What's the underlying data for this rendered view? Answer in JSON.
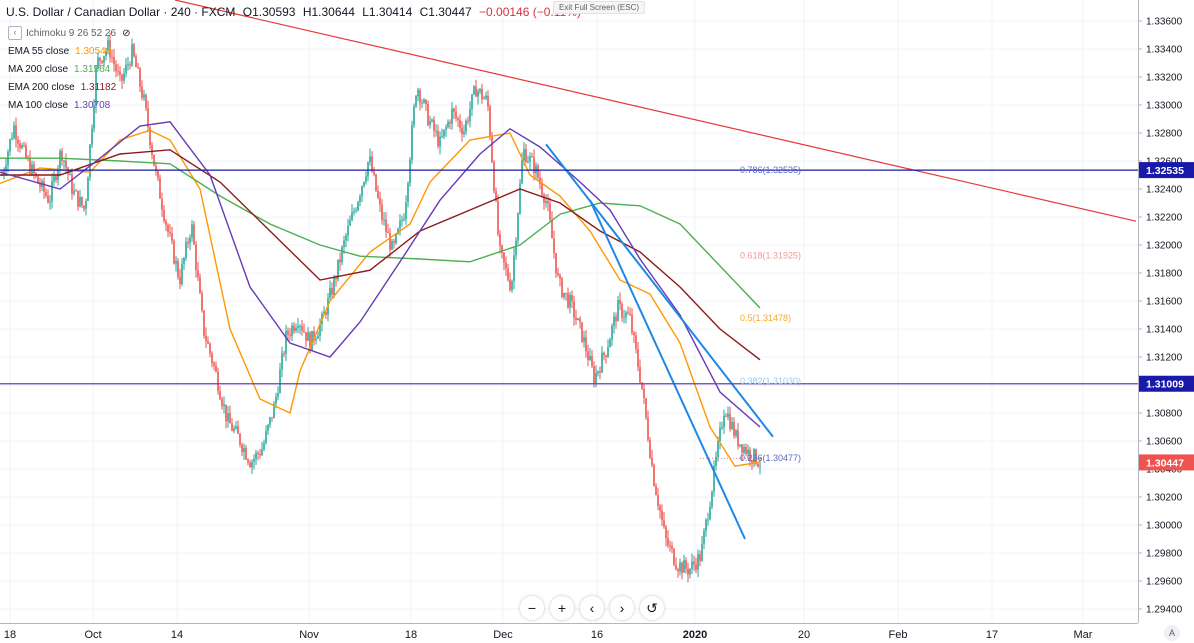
{
  "header": {
    "symbol": "U.S. Dollar / Canadian Dollar · 240 · FXCM",
    "open": "O1.30593",
    "high": "H1.30644",
    "low": "L1.30414",
    "close": "C1.30447",
    "change": "−0.00146 (−0.11%)"
  },
  "indicators": [
    {
      "label": "Ichimoku 9 26 52 26",
      "value": "",
      "color": "#787b86"
    },
    {
      "label": "EMA 55 close",
      "value": "1.30543",
      "color": "#ff9800"
    },
    {
      "label": "MA 200 close",
      "value": "1.31564",
      "color": "#4caf50"
    },
    {
      "label": "EMA 200 close",
      "value": "1.31182",
      "color": "#8b1a1a"
    },
    {
      "label": "MA 100 close",
      "value": "1.30708",
      "color": "#673ab7"
    }
  ],
  "ui": {
    "exit_fullscreen": "Exit Full Screen (ESC)",
    "zoom_out": "−",
    "zoom_in": "+",
    "scroll_left": "‹",
    "scroll_right": "›",
    "reset": "↺",
    "auto_scale": "A"
  },
  "colors": {
    "up": "#26a69a",
    "down": "#ef5350",
    "trend_red": "#e53935",
    "trend_blue": "#1e88e5",
    "hline": "#1a1aa8",
    "hline2": "#6a3fc1"
  },
  "chart_data": {
    "type": "candlestick",
    "xlabels": [
      "18",
      "Oct",
      "14",
      "Nov",
      "18",
      "Dec",
      "16",
      "2020",
      "20",
      "Feb",
      "17",
      "Mar"
    ],
    "ylim": [
      1.293,
      1.3375
    ],
    "y_ticks": [
      "1.33600",
      "1.33400",
      "1.33200",
      "1.33000",
      "1.32800",
      "1.32600",
      "1.32400",
      "1.32200",
      "1.32000",
      "1.31800",
      "1.31600",
      "1.31400",
      "1.31200",
      "1.31000",
      "1.30800",
      "1.30600",
      "1.30400",
      "1.30200",
      "1.30000",
      "1.29800",
      "1.29600",
      "1.29400"
    ],
    "price_labels": [
      {
        "value": 1.32535,
        "text": "1.32535",
        "color": "#1a1aa8"
      },
      {
        "value": 1.31009,
        "text": "1.31009",
        "color": "#1a1aa8"
      },
      {
        "value": 1.30447,
        "text": "1.30447",
        "color": "#ef5350"
      }
    ],
    "fib_labels": [
      {
        "value": 1.32535,
        "text": "0.786(1.32535)",
        "color": "#5c6bc0"
      },
      {
        "value": 1.31925,
        "text": "0.618(1.31925)",
        "color": "#ef9a9a"
      },
      {
        "value": 1.31478,
        "text": "0.5(1.31478)",
        "color": "#f9a825"
      },
      {
        "value": 1.3103,
        "text": "0.382(1.31030)",
        "color": "#90caf9"
      },
      {
        "value": 1.30477,
        "text": "0.236(1.30477)",
        "color": "#5c6bc0"
      }
    ],
    "price_path": [
      1.325,
      1.3285,
      1.3262,
      1.3245,
      1.3232,
      1.3268,
      1.3238,
      1.3225,
      1.333,
      1.3342,
      1.3315,
      1.3338,
      1.3302,
      1.325,
      1.321,
      1.3175,
      1.3215,
      1.314,
      1.311,
      1.3075,
      1.3062,
      1.3045,
      1.3055,
      1.3085,
      1.3135,
      1.3148,
      1.313,
      1.3145,
      1.3172,
      1.3205,
      1.3232,
      1.3262,
      1.3222,
      1.3195,
      1.3225,
      1.3315,
      1.329,
      1.3272,
      1.3295,
      1.3282,
      1.3312,
      1.3302,
      1.3195,
      1.317,
      1.3268,
      1.3255,
      1.323,
      1.3172,
      1.3158,
      1.3135,
      1.3105,
      1.3125,
      1.3155,
      1.3148,
      1.31,
      1.3035,
      1.299,
      1.2972,
      1.2968,
      1.2978,
      1.303,
      1.3085,
      1.3062,
      1.3052,
      1.3045
    ]
  }
}
